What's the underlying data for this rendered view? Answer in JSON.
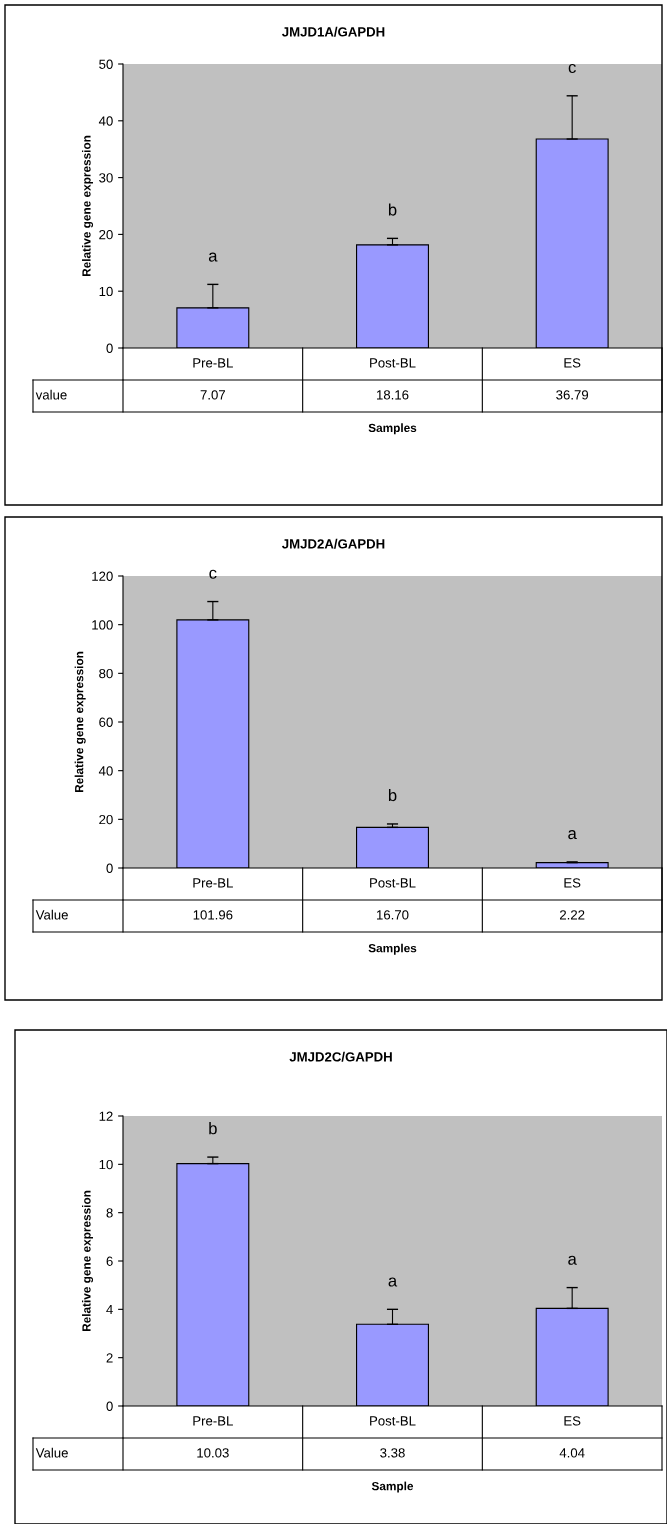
{
  "chart_data": [
    {
      "type": "bar",
      "title": "JMJD1A/GAPDH",
      "xlabel": "Samples",
      "ylabel": "Relative gene expression",
      "categories": [
        "Pre-BL",
        "Post-BL",
        "ES"
      ],
      "values": [
        7.07,
        18.16,
        36.79
      ],
      "value_labels": [
        "7.07",
        "18.16",
        "36.79"
      ],
      "color": "#9999ff",
      "errors": [
        [
          7.07,
          11.2
        ],
        [
          18.16,
          19.3
        ],
        [
          36.79,
          44.4
        ]
      ],
      "ylim": [
        0,
        50
      ],
      "yticks": [
        0,
        10,
        20,
        30,
        40,
        50
      ],
      "grid": false,
      "legend": false,
      "annotations": [
        "value",
        "a",
        "b",
        "c"
      ]
    },
    {
      "type": "bar",
      "title": "JMJD2A/GAPDH",
      "xlabel": "Samples",
      "ylabel": "Relative gene expression",
      "categories": [
        "Pre-BL",
        "Post-BL",
        "ES"
      ],
      "values": [
        101.96,
        16.7,
        2.22
      ],
      "value_labels": [
        "101.96",
        "16.70",
        "2.22"
      ],
      "color": "#9999ff",
      "errors": [
        [
          101.96,
          109.5
        ],
        [
          16.7,
          18.1
        ],
        [
          2.22,
          2.5
        ]
      ],
      "ylim": [
        0,
        120
      ],
      "yticks": [
        0,
        20,
        40,
        60,
        80,
        100,
        120
      ],
      "grid": false,
      "legend": false,
      "annotations": [
        "Value",
        "c",
        "b",
        "a"
      ]
    },
    {
      "type": "bar",
      "title": "JMJD2C/GAPDH",
      "xlabel": "Sample",
      "ylabel": "Relative gene expression",
      "categories": [
        "Pre-BL",
        "Post-BL",
        "ES"
      ],
      "values": [
        10.03,
        3.38,
        4.04
      ],
      "value_labels": [
        "10.03",
        "3.38",
        "4.04"
      ],
      "color": "#9999ff",
      "errors": [
        [
          10.03,
          10.3
        ],
        [
          3.38,
          4.0
        ],
        [
          4.04,
          4.9
        ]
      ],
      "ylim": [
        0,
        12
      ],
      "yticks": [
        0,
        2,
        4,
        6,
        8,
        10,
        12
      ],
      "grid": false,
      "legend": false,
      "annotations": [
        "Value",
        "b",
        "a",
        "a"
      ]
    }
  ]
}
